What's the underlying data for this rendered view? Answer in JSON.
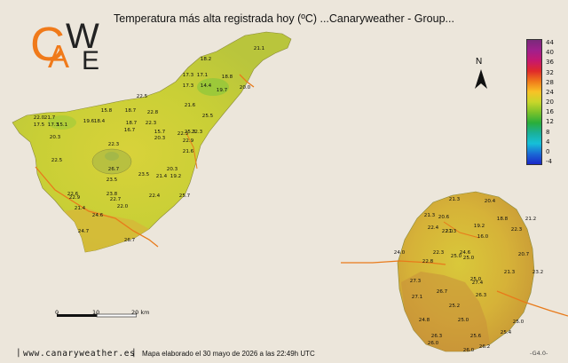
{
  "header": {
    "title": "Temperatura más alta registrada hoy (ºC)     ...Canaryweather - Group..."
  },
  "logo": {
    "letters_c": "C",
    "letters_a": "A",
    "letters_w": "W",
    "letters_e": "E"
  },
  "legend": {
    "ticks": [
      "44",
      "40",
      "36",
      "32",
      "28",
      "24",
      "20",
      "16",
      "12",
      "8",
      "4",
      "0",
      "-4"
    ],
    "colors": [
      "#7a2a7a",
      "#a0208c",
      "#c6186e",
      "#e02a2a",
      "#f07a1a",
      "#f8c226",
      "#c8d62a",
      "#7cc22a",
      "#2aae3a",
      "#1ab09a",
      "#16c0d8",
      "#1a6ad6",
      "#1a28c8"
    ]
  },
  "north": {
    "letter": "N"
  },
  "scale": {
    "labels": [
      "0",
      "10",
      "20 km"
    ]
  },
  "footer": {
    "site": "www.canaryweather.es",
    "sep": "|",
    "note": "Mapa elaborado el 30 mayo de 2026 a las 22:49h UTC",
    "code": "-G4.0-"
  },
  "tenerife_labels": [
    "15.8",
    "18.2",
    "18.7",
    "17.3",
    "17.1",
    "18.8",
    "14.4",
    "19.7",
    "17.3",
    "22.5",
    "20.0",
    "21.7",
    "22.0",
    "22.8",
    "19.6",
    "18.4",
    "18.7",
    "22.3",
    "17.3",
    "21.6",
    "16.7",
    "22.3",
    "17.5",
    "15.1",
    "20.3",
    "15.7",
    "20.3",
    "22.3",
    "25.5",
    "25.3",
    "22.9",
    "21.6",
    "22.5",
    "22.3",
    "23.5",
    "20.3",
    "26.7",
    "23.8",
    "21.4",
    "19.2",
    "25.7",
    "23.5",
    "22.6",
    "22.7",
    "22.4",
    "22.9",
    "22.0",
    "21.4",
    "24.6",
    "24.7",
    "26.7",
    "21.1"
  ],
  "grancanaria_labels": [
    "21.3",
    "20.4",
    "21.3",
    "18.8",
    "21.2",
    "20.6",
    "22.4",
    "21.3",
    "22.3",
    "19.2",
    "22.0",
    "16.0",
    "24.0",
    "22.3",
    "24.6",
    "25.0",
    "20.7",
    "23.2",
    "25.0",
    "22.8",
    "21.3",
    "27.3",
    "26.7",
    "25.0",
    "27.4",
    "27.1",
    "26.3",
    "25.2",
    "24.8",
    "25.0",
    "25.6",
    "26.3",
    "25.4",
    "25.0",
    "26.0",
    "26.0",
    "26.2"
  ]
}
